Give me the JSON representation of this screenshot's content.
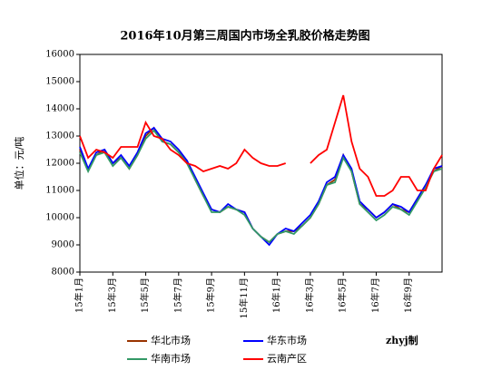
{
  "chart_data": {
    "type": "line",
    "title": "2016年10月第三周国内市场全乳胶价格走势图",
    "y_label": "单位：元/吨",
    "note": "zhyj制",
    "categories": [
      "15年1月",
      null,
      null,
      null,
      "15年3月",
      null,
      null,
      null,
      "15年5月",
      null,
      null,
      null,
      "15年7月",
      null,
      null,
      null,
      "15年9月",
      null,
      null,
      null,
      "15年11月",
      null,
      null,
      null,
      "16年1月",
      null,
      null,
      null,
      "16年3月",
      null,
      null,
      null,
      "16年5月",
      null,
      null,
      null,
      "16年7月",
      null,
      null,
      null,
      "16年9月",
      null,
      null,
      null,
      null
    ],
    "series": [
      {
        "name": "华北市场",
        "color": "#993300",
        "values": [
          12500,
          11800,
          12300,
          12500,
          12000,
          12200,
          11800,
          12300,
          13000,
          13300,
          12800,
          12700,
          12400,
          12100,
          11400,
          10800,
          10300,
          10200,
          10400,
          10300,
          10200,
          9600,
          9300,
          9100,
          9400,
          9500,
          9500,
          9700,
          10000,
          10500,
          11200,
          11400,
          12300,
          11700,
          10500,
          10300,
          10000,
          10200,
          10500,
          10300,
          10200,
          10700,
          11200,
          11700,
          11900
        ]
      },
      {
        "name": "华东市场",
        "color": "#0000ff",
        "values": [
          12600,
          11800,
          12400,
          12500,
          12000,
          12300,
          11900,
          12400,
          13100,
          13300,
          12900,
          12800,
          12500,
          12100,
          11500,
          10900,
          10300,
          10200,
          10500,
          10300,
          10200,
          9600,
          9300,
          9000,
          9400,
          9600,
          9500,
          9800,
          10100,
          10600,
          11300,
          11500,
          12300,
          11800,
          10600,
          10300,
          10000,
          10200,
          10500,
          10400,
          10200,
          10700,
          11200,
          11800,
          11900
        ]
      },
      {
        "name": "华南市场",
        "color": "#339966",
        "values": [
          12400,
          11700,
          12300,
          12400,
          11900,
          12200,
          11800,
          12300,
          12900,
          13200,
          12800,
          12700,
          12400,
          12000,
          11400,
          10800,
          10200,
          10200,
          10400,
          10300,
          10100,
          9600,
          9300,
          9100,
          9400,
          9500,
          9400,
          9700,
          10000,
          10500,
          11200,
          11300,
          12200,
          11700,
          10500,
          10200,
          9900,
          10100,
          10400,
          10300,
          10100,
          10600,
          11100,
          11700,
          11800
        ]
      },
      {
        "name": "云南产区",
        "color": "#ff0000",
        "values": [
          13000,
          12200,
          12500,
          12400,
          12200,
          12600,
          12600,
          12600,
          13500,
          13000,
          12900,
          12500,
          12300,
          12000,
          11900,
          11700,
          11800,
          11900,
          11800,
          12000,
          12500,
          12200,
          12000,
          11900,
          11900,
          12000,
          null,
          null,
          12000,
          12300,
          12500,
          13500,
          14500,
          12800,
          11800,
          11500,
          10800,
          10800,
          11000,
          11500,
          11500,
          11000,
          11000,
          11800,
          12300
        ]
      }
    ],
    "ylim": [
      8000,
      16000
    ],
    "yticks": [
      8000,
      9000,
      10000,
      11000,
      12000,
      13000,
      14000,
      15000,
      16000
    ]
  }
}
